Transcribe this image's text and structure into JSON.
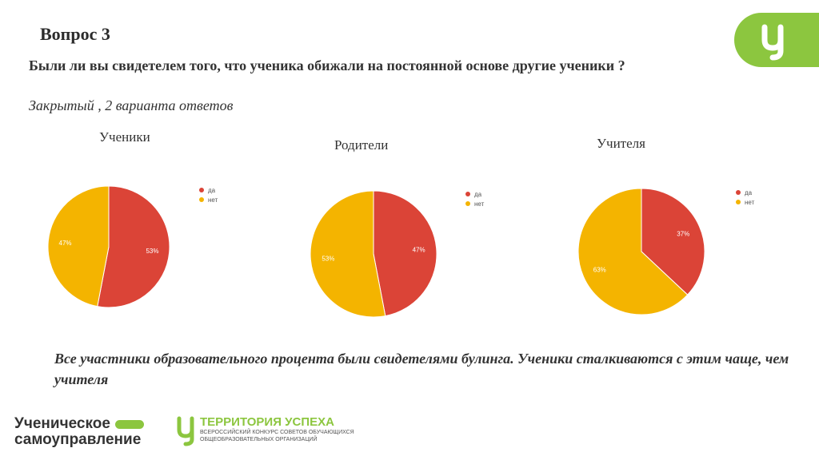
{
  "slide": {
    "title": "Вопрос 3",
    "question": "Были ли вы свидетелем того, что ученика обижали на постоянной основе другие ученики ?",
    "question_type": "Закрытый , 2 варианта ответов",
    "conclusion": "Все участники образовательного процента были свидетелями  булинга. Ученики сталкиваются с этим чаще, чем учителя"
  },
  "colors": {
    "yes": "#db4437",
    "no": "#f4b400",
    "brand": "#8cc63f"
  },
  "chart_data": [
    {
      "type": "pie",
      "title": "Ученики",
      "categories": [
        "да",
        "нет"
      ],
      "values": [
        53,
        47
      ],
      "labels": [
        "53%",
        "47%"
      ]
    },
    {
      "type": "pie",
      "title": "Родители",
      "categories": [
        "да",
        "нет"
      ],
      "values": [
        47,
        53
      ],
      "labels": [
        "47%",
        "53%"
      ]
    },
    {
      "type": "pie",
      "title": "Учителя",
      "categories": [
        "да",
        "нет"
      ],
      "values": [
        37,
        63
      ],
      "labels": [
        "37%",
        "63%"
      ]
    }
  ],
  "logos": {
    "left_line1": "Ученическое",
    "left_line2": "самоуправление",
    "right_title": "ТЕРРИТОРИЯ УСПЕХА",
    "right_sub1": "ВСЕРОССИЙСКИЙ КОНКУРС СОВЕТОВ ОБУЧАЮЩИХСЯ",
    "right_sub2": "ОБЩЕОБРАЗОВАТЕЛЬНЫХ ОРГАНИЗАЦИЙ"
  }
}
